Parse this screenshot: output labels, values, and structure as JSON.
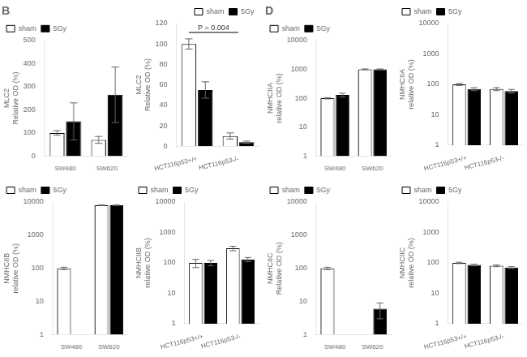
{
  "chart_data": [
    {
      "type": "bar",
      "title": "B",
      "categories": [
        "SW480",
        "SW620"
      ],
      "series": [
        {
          "name": "sham",
          "color": "white",
          "values": [
            100,
            70
          ],
          "errors": [
            10,
            15
          ]
        },
        {
          "name": "5Gy",
          "color": "black",
          "values": [
            150,
            265
          ],
          "errors": [
            80,
            120
          ]
        }
      ],
      "ylabel": "MLC2\nRelative OD (%)",
      "ylim": [
        0,
        500
      ],
      "yticks": [
        0,
        100,
        200,
        300,
        400,
        500
      ],
      "grid": false,
      "legend": "upper left"
    },
    {
      "type": "bar",
      "categories": [
        "HCT116p53+/+",
        "HCT116p53-/-"
      ],
      "series": [
        {
          "name": "sham",
          "color": "white",
          "values": [
            100,
            10
          ],
          "errors": [
            5,
            3
          ]
        },
        {
          "name": "5Gy",
          "color": "black",
          "values": [
            55,
            4
          ],
          "errors": [
            8,
            1
          ]
        }
      ],
      "ylabel": "MLC2\nRelative OD (%)",
      "ylim": [
        0,
        120
      ],
      "yticks": [
        0,
        20,
        40,
        60,
        80,
        100,
        120
      ],
      "grid": false,
      "legend": "upper right",
      "annotations": [
        {
          "text": "P = 0.004"
        }
      ]
    },
    {
      "type": "bar",
      "title": "D",
      "categories": [
        "SW480",
        "SW620"
      ],
      "series": [
        {
          "name": "sham",
          "color": "white",
          "values": [
            100,
            1000
          ],
          "errors": [
            5,
            30
          ]
        },
        {
          "name": "5Gy",
          "color": "black",
          "values": [
            130,
            1000
          ],
          "errors": [
            20,
            30
          ]
        }
      ],
      "ylabel": "NMHCIIA\nrelative OD (%)",
      "log": "y",
      "ylim": [
        1,
        10000
      ],
      "yticks": [
        1,
        10,
        100,
        1000,
        10000
      ],
      "grid": false,
      "legend": "upper left"
    },
    {
      "type": "bar",
      "categories": [
        "HCT116p53+/+",
        "HCT116p53-/-"
      ],
      "series": [
        {
          "name": "sham",
          "color": "white",
          "values": [
            100,
            70
          ],
          "errors": [
            8,
            8
          ]
        },
        {
          "name": "5Gy",
          "color": "black",
          "values": [
            70,
            60
          ],
          "errors": [
            8,
            8
          ]
        }
      ],
      "ylabel": "NMHCIIA\nrelative OD (%)",
      "log": "y",
      "ylim": [
        1,
        10000
      ],
      "yticks": [
        1,
        10,
        100,
        1000,
        10000
      ],
      "grid": false,
      "legend": "upper left"
    },
    {
      "type": "bar",
      "categories": [
        "SW480",
        "SW620"
      ],
      "series": [
        {
          "name": "sham",
          "color": "white",
          "values": [
            100,
            8000
          ],
          "errors": [
            8,
            200
          ]
        },
        {
          "name": "5Gy",
          "color": "black",
          "values": [
            null,
            8000
          ],
          "errors": [
            null,
            200
          ]
        }
      ],
      "ylabel": "NMHCIIB\nrelative OD (%)",
      "log": "y",
      "ylim": [
        1,
        10000
      ],
      "yticks": [
        1,
        10,
        100,
        1000,
        10000
      ],
      "grid": false,
      "legend": "upper left"
    },
    {
      "type": "bar",
      "categories": [
        "HCT116p53+/+",
        "HCT116p53-/-"
      ],
      "series": [
        {
          "name": "sham",
          "color": "white",
          "values": [
            100,
            300
          ],
          "errors": [
            30,
            50
          ]
        },
        {
          "name": "5Gy",
          "color": "black",
          "values": [
            100,
            130
          ],
          "errors": [
            20,
            20
          ]
        }
      ],
      "ylabel": "NMHCIIB\nrelative OD (%)",
      "log": "y",
      "ylim": [
        1,
        10000
      ],
      "yticks": [
        1,
        10,
        100,
        1000,
        10000
      ],
      "grid": false,
      "legend": "upper left"
    },
    {
      "type": "bar",
      "categories": [
        "SW480",
        "SW620"
      ],
      "series": [
        {
          "name": "sham",
          "color": "white",
          "values": [
            100,
            null
          ],
          "errors": [
            8,
            null
          ]
        },
        {
          "name": "5Gy",
          "color": "black",
          "values": [
            null,
            6
          ],
          "errors": [
            null,
            3
          ]
        }
      ],
      "ylabel": "NMHCIIC\nRelative OD (%)",
      "log": "y",
      "ylim": [
        1,
        10000
      ],
      "yticks": [
        1,
        10,
        100,
        1000,
        10000
      ],
      "grid": false,
      "legend": "upper left"
    },
    {
      "type": "bar",
      "categories": [
        "HCT116p53+/+",
        "HCT116p53-/-"
      ],
      "series": [
        {
          "name": "sham",
          "color": "white",
          "values": [
            100,
            80
          ],
          "errors": [
            5,
            5
          ]
        },
        {
          "name": "5Gy",
          "color": "black",
          "values": [
            85,
            70
          ],
          "errors": [
            5,
            5
          ]
        }
      ],
      "ylabel": "NMHCIIC\nrelative OD (%)",
      "log": "y",
      "ylim": [
        1,
        10000
      ],
      "yticks": [
        1,
        10,
        100,
        1000,
        10000
      ],
      "grid": false,
      "legend": "upper left"
    }
  ]
}
